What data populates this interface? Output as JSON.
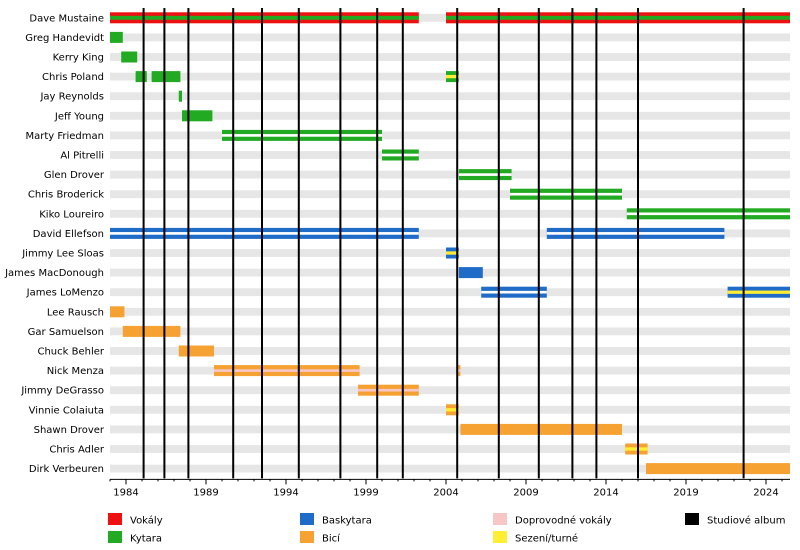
{
  "chart_data": {
    "type": "timeline",
    "xlim": [
      1983.0,
      2025.5
    ],
    "x_ticks": [
      1984,
      1989,
      1994,
      1999,
      2004,
      2009,
      2014,
      2019,
      2024
    ],
    "row_bg_colors": [
      "#ffffff",
      "#e6e6e6"
    ],
    "role_colors": {
      "vocals": "#ee1111",
      "guitar": "#22aa22",
      "bass": "#1f6cc8",
      "backing": "#f7c6c6",
      "drums": "#f5a233",
      "session": "#ffee33",
      "album": "#000000"
    },
    "albums": [
      1985.1,
      1986.4,
      1987.9,
      1990.7,
      1992.5,
      1994.8,
      1997.4,
      1999.7,
      2001.3,
      2004.7,
      2007.3,
      2009.8,
      2011.9,
      2013.4,
      2016.0,
      2022.6
    ],
    "members": [
      {
        "name": "Dave Mustaine",
        "periods": [
          {
            "start": 1983.0,
            "end": 2002.3,
            "roles": [
              "vocals",
              "guitar"
            ]
          },
          {
            "start": 2004.0,
            "end": 2025.5,
            "roles": [
              "vocals",
              "guitar"
            ]
          }
        ]
      },
      {
        "name": "Greg Handevidt",
        "periods": [
          {
            "start": 1983.0,
            "end": 1983.8,
            "roles": [
              "guitar"
            ]
          }
        ]
      },
      {
        "name": "Kerry King",
        "periods": [
          {
            "start": 1983.7,
            "end": 1984.7,
            "roles": [
              "guitar"
            ]
          }
        ]
      },
      {
        "name": "Chris Poland",
        "periods": [
          {
            "start": 1984.6,
            "end": 1985.3,
            "roles": [
              "guitar"
            ]
          },
          {
            "start": 1985.6,
            "end": 1987.4,
            "roles": [
              "guitar"
            ]
          },
          {
            "start": 2004.0,
            "end": 2004.8,
            "roles": [
              "guitar",
              "session"
            ]
          }
        ]
      },
      {
        "name": "Jay Reynolds",
        "periods": [
          {
            "start": 1987.3,
            "end": 1987.5,
            "roles": [
              "guitar"
            ]
          }
        ]
      },
      {
        "name": "Jeff Young",
        "periods": [
          {
            "start": 1987.5,
            "end": 1989.4,
            "roles": [
              "guitar"
            ]
          }
        ]
      },
      {
        "name": "Marty Friedman",
        "periods": [
          {
            "start": 1990.0,
            "end": 2000.0,
            "roles": [
              "guitar",
              "backing"
            ]
          }
        ]
      },
      {
        "name": "Al Pitrelli",
        "periods": [
          {
            "start": 2000.0,
            "end": 2002.3,
            "roles": [
              "guitar",
              "backing"
            ]
          }
        ]
      },
      {
        "name": "Glen Drover",
        "periods": [
          {
            "start": 2004.8,
            "end": 2008.1,
            "roles": [
              "guitar",
              "backing"
            ]
          }
        ]
      },
      {
        "name": "Chris Broderick",
        "periods": [
          {
            "start": 2008.0,
            "end": 2015.0,
            "roles": [
              "guitar",
              "backing"
            ]
          }
        ]
      },
      {
        "name": "Kiko Loureiro",
        "periods": [
          {
            "start": 2015.3,
            "end": 2025.5,
            "roles": [
              "guitar",
              "backing"
            ]
          }
        ]
      },
      {
        "name": "David Ellefson",
        "periods": [
          {
            "start": 1983.0,
            "end": 2002.3,
            "roles": [
              "bass",
              "backing"
            ]
          },
          {
            "start": 2010.3,
            "end": 2021.4,
            "roles": [
              "bass",
              "backing"
            ]
          }
        ]
      },
      {
        "name": "Jimmy Lee Sloas",
        "periods": [
          {
            "start": 2004.0,
            "end": 2004.8,
            "roles": [
              "bass",
              "session"
            ]
          }
        ]
      },
      {
        "name": "James MacDonough",
        "periods": [
          {
            "start": 2004.8,
            "end": 2006.3,
            "roles": [
              "bass"
            ]
          }
        ]
      },
      {
        "name": "James LoMenzo",
        "periods": [
          {
            "start": 2006.2,
            "end": 2010.3,
            "roles": [
              "bass",
              "backing"
            ]
          },
          {
            "start": 2021.6,
            "end": 2025.5,
            "roles": [
              "bass",
              "session"
            ]
          }
        ]
      },
      {
        "name": "Lee Rausch",
        "periods": [
          {
            "start": 1983.0,
            "end": 1983.9,
            "roles": [
              "drums"
            ]
          }
        ]
      },
      {
        "name": "Gar Samuelson",
        "periods": [
          {
            "start": 1983.8,
            "end": 1987.4,
            "roles": [
              "drums"
            ]
          }
        ]
      },
      {
        "name": "Chuck Behler",
        "periods": [
          {
            "start": 1987.3,
            "end": 1989.5,
            "roles": [
              "drums"
            ]
          }
        ]
      },
      {
        "name": "Nick Menza",
        "periods": [
          {
            "start": 1989.5,
            "end": 1998.6,
            "roles": [
              "drums",
              "backing"
            ]
          },
          {
            "start": 2004.7,
            "end": 2004.9,
            "roles": [
              "drums",
              "backing"
            ]
          }
        ]
      },
      {
        "name": "Jimmy DeGrasso",
        "periods": [
          {
            "start": 1998.5,
            "end": 2002.3,
            "roles": [
              "drums",
              "backing"
            ]
          }
        ]
      },
      {
        "name": "Vinnie Colaiuta",
        "periods": [
          {
            "start": 2004.0,
            "end": 2004.8,
            "roles": [
              "drums",
              "session"
            ]
          }
        ]
      },
      {
        "name": "Shawn Drover",
        "periods": [
          {
            "start": 2004.9,
            "end": 2015.0,
            "roles": [
              "drums"
            ]
          }
        ]
      },
      {
        "name": "Chris Adler",
        "periods": [
          {
            "start": 2015.2,
            "end": 2016.6,
            "roles": [
              "drums",
              "session"
            ]
          }
        ]
      },
      {
        "name": "Dirk Verbeuren",
        "periods": [
          {
            "start": 2016.5,
            "end": 2025.5,
            "roles": [
              "drums"
            ]
          }
        ]
      }
    ],
    "legend": [
      {
        "role": "vocals",
        "label": "Vokály"
      },
      {
        "role": "bass",
        "label": "Baskytara"
      },
      {
        "role": "backing",
        "label": "Doprovodné vokály"
      },
      {
        "role": "album",
        "label": "Studiové album"
      },
      {
        "role": "guitar",
        "label": "Kytara"
      },
      {
        "role": "drums",
        "label": "Bicí"
      },
      {
        "role": "session",
        "label": "Sezení/turné"
      }
    ]
  }
}
